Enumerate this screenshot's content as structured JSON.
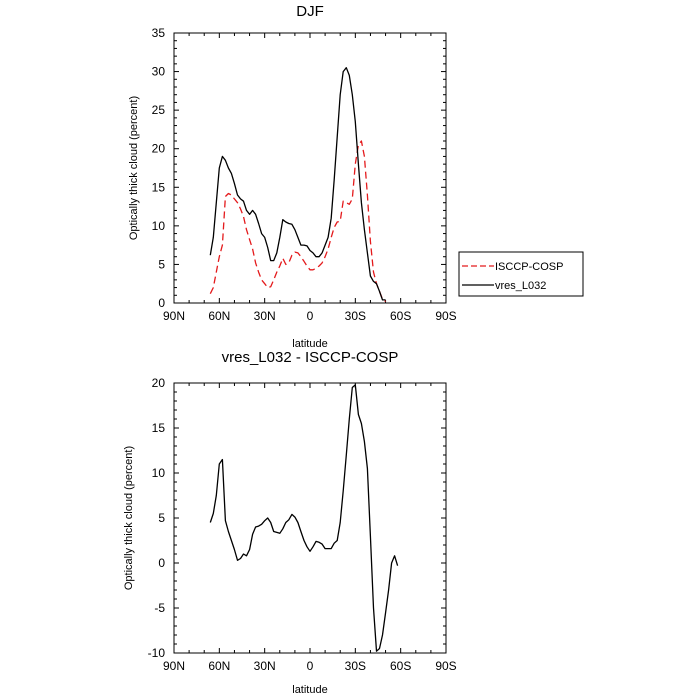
{
  "chart_data": [
    {
      "type": "line",
      "title": "DJF",
      "xlabel": "latitude",
      "ylabel": "Optically thick cloud (percent)",
      "xlim": [
        -90,
        90
      ],
      "ylim": [
        0,
        35
      ],
      "x_ticks": [
        -90,
        -60,
        -30,
        0,
        30,
        60,
        90
      ],
      "x_tick_labels": [
        "90N",
        "60N",
        "30N",
        "0",
        "30S",
        "60S",
        "90S"
      ],
      "y_ticks": [
        0,
        5,
        10,
        15,
        20,
        25,
        30,
        35
      ],
      "y_tick_labels": [
        "0",
        "5",
        "10",
        "15",
        "20",
        "25",
        "30",
        "35"
      ],
      "legend_position": "right",
      "series": [
        {
          "name": "ISCCP-COSP",
          "color": "#e41a1c",
          "dash": "dashed",
          "points": [
            [
              -66,
              1.2
            ],
            [
              -64,
              2.0
            ],
            [
              -62,
              4.0
            ],
            [
              -60,
              6.0
            ],
            [
              -58,
              7.5
            ],
            [
              -56,
              13.8
            ],
            [
              -54,
              14.2
            ],
            [
              -52,
              14.0
            ],
            [
              -50,
              13.5
            ],
            [
              -48,
              13.0
            ],
            [
              -46,
              12.2
            ],
            [
              -44,
              11.2
            ],
            [
              -42,
              9.5
            ],
            [
              -40,
              8.2
            ],
            [
              -38,
              7.0
            ],
            [
              -36,
              5.2
            ],
            [
              -34,
              4.0
            ],
            [
              -32,
              3.0
            ],
            [
              -30,
              2.5
            ],
            [
              -28,
              2.0
            ],
            [
              -26,
              2.1
            ],
            [
              -24,
              3.0
            ],
            [
              -22,
              4.0
            ],
            [
              -20,
              4.8
            ],
            [
              -18,
              5.8
            ],
            [
              -16,
              5.0
            ],
            [
              -14,
              5.2
            ],
            [
              -12,
              6.2
            ],
            [
              -10,
              6.6
            ],
            [
              -8,
              6.5
            ],
            [
              -6,
              6.0
            ],
            [
              -4,
              5.4
            ],
            [
              -2,
              4.8
            ],
            [
              0,
              4.3
            ],
            [
              2,
              4.3
            ],
            [
              4,
              4.5
            ],
            [
              6,
              4.8
            ],
            [
              8,
              5.2
            ],
            [
              10,
              6.0
            ],
            [
              12,
              7.0
            ],
            [
              14,
              8.5
            ],
            [
              16,
              9.8
            ],
            [
              18,
              10.5
            ],
            [
              20,
              10.6
            ],
            [
              22,
              13.2
            ],
            [
              24,
              13.0
            ],
            [
              26,
              12.8
            ],
            [
              28,
              13.5
            ],
            [
              30,
              18.0
            ],
            [
              32,
              20.5
            ],
            [
              34,
              21.0
            ],
            [
              36,
              19.0
            ],
            [
              38,
              14.0
            ],
            [
              40,
              8.0
            ],
            [
              42,
              4.0
            ],
            [
              44,
              2.5
            ],
            [
              46,
              1.5
            ],
            [
              48,
              0.5
            ],
            [
              50,
              0.2
            ]
          ]
        },
        {
          "name": "vres_L032",
          "color": "#000000",
          "dash": "solid",
          "points": [
            [
              -66,
              6.2
            ],
            [
              -64,
              8.5
            ],
            [
              -62,
              13.0
            ],
            [
              -60,
              17.5
            ],
            [
              -58,
              19.0
            ],
            [
              -56,
              18.5
            ],
            [
              -54,
              17.5
            ],
            [
              -52,
              16.8
            ],
            [
              -50,
              15.5
            ],
            [
              -48,
              14.0
            ],
            [
              -46,
              13.5
            ],
            [
              -44,
              13.2
            ],
            [
              -42,
              12.0
            ],
            [
              -40,
              11.5
            ],
            [
              -38,
              12.0
            ],
            [
              -36,
              11.5
            ],
            [
              -34,
              10.3
            ],
            [
              -32,
              9.0
            ],
            [
              -30,
              8.5
            ],
            [
              -28,
              7.2
            ],
            [
              -26,
              5.5
            ],
            [
              -24,
              5.5
            ],
            [
              -22,
              6.5
            ],
            [
              -20,
              8.5
            ],
            [
              -18,
              10.8
            ],
            [
              -16,
              10.5
            ],
            [
              -14,
              10.3
            ],
            [
              -12,
              10.2
            ],
            [
              -10,
              9.5
            ],
            [
              -8,
              8.5
            ],
            [
              -6,
              7.5
            ],
            [
              -4,
              7.5
            ],
            [
              -2,
              7.4
            ],
            [
              0,
              6.8
            ],
            [
              2,
              6.5
            ],
            [
              4,
              6.0
            ],
            [
              6,
              6.0
            ],
            [
              8,
              6.5
            ],
            [
              10,
              7.5
            ],
            [
              12,
              8.5
            ],
            [
              14,
              11.0
            ],
            [
              16,
              16.0
            ],
            [
              18,
              21.5
            ],
            [
              20,
              27.0
            ],
            [
              22,
              30.0
            ],
            [
              24,
              30.5
            ],
            [
              26,
              29.5
            ],
            [
              28,
              27.0
            ],
            [
              30,
              23.5
            ],
            [
              32,
              18.0
            ],
            [
              34,
              13.0
            ],
            [
              36,
              9.5
            ],
            [
              38,
              6.5
            ],
            [
              40,
              3.5
            ],
            [
              42,
              2.8
            ],
            [
              44,
              2.5
            ],
            [
              46,
              1.5
            ],
            [
              48,
              0.4
            ],
            [
              50,
              0.4
            ]
          ]
        }
      ]
    },
    {
      "type": "line",
      "title": "vres_L032 - ISCCP-COSP",
      "xlabel": "latitude",
      "ylabel": "Optically thick cloud (percent)",
      "xlim": [
        -90,
        90
      ],
      "ylim": [
        -10,
        20
      ],
      "x_ticks": [
        -90,
        -60,
        -30,
        0,
        30,
        60,
        90
      ],
      "x_tick_labels": [
        "90N",
        "60N",
        "30N",
        "0",
        "30S",
        "60S",
        "90S"
      ],
      "y_ticks": [
        -10,
        -5,
        0,
        5,
        10,
        15,
        20
      ],
      "y_tick_labels": [
        "-10",
        "-5",
        "0",
        "5",
        "10",
        "15",
        "20"
      ],
      "series": [
        {
          "color": "#000000",
          "dash": "solid",
          "points": [
            [
              -66,
              4.5
            ],
            [
              -64,
              5.5
            ],
            [
              -62,
              7.5
            ],
            [
              -60,
              11.0
            ],
            [
              -58,
              11.5
            ],
            [
              -56,
              4.7
            ],
            [
              -54,
              3.5
            ],
            [
              -52,
              2.5
            ],
            [
              -50,
              1.5
            ],
            [
              -48,
              0.3
            ],
            [
              -46,
              0.5
            ],
            [
              -44,
              1.0
            ],
            [
              -42,
              0.8
            ],
            [
              -40,
              1.5
            ],
            [
              -38,
              3.2
            ],
            [
              -36,
              4.0
            ],
            [
              -34,
              4.1
            ],
            [
              -32,
              4.3
            ],
            [
              -30,
              4.7
            ],
            [
              -28,
              5.0
            ],
            [
              -26,
              4.5
            ],
            [
              -24,
              3.5
            ],
            [
              -22,
              3.4
            ],
            [
              -20,
              3.3
            ],
            [
              -18,
              3.8
            ],
            [
              -16,
              4.5
            ],
            [
              -14,
              4.8
            ],
            [
              -12,
              5.4
            ],
            [
              -10,
              5.1
            ],
            [
              -8,
              4.5
            ],
            [
              -6,
              3.5
            ],
            [
              -4,
              2.5
            ],
            [
              -2,
              1.8
            ],
            [
              0,
              1.3
            ],
            [
              2,
              1.8
            ],
            [
              4,
              2.4
            ],
            [
              6,
              2.3
            ],
            [
              8,
              2.1
            ],
            [
              10,
              1.6
            ],
            [
              12,
              1.6
            ],
            [
              14,
              1.6
            ],
            [
              16,
              2.2
            ],
            [
              18,
              2.5
            ],
            [
              20,
              4.5
            ],
            [
              22,
              8.0
            ],
            [
              24,
              12.0
            ],
            [
              26,
              16.0
            ],
            [
              28,
              19.5
            ],
            [
              30,
              19.8
            ],
            [
              32,
              16.5
            ],
            [
              34,
              15.5
            ],
            [
              36,
              13.5
            ],
            [
              38,
              10.5
            ],
            [
              40,
              3.0
            ],
            [
              42,
              -5.0
            ],
            [
              44,
              -9.8
            ],
            [
              46,
              -9.5
            ],
            [
              48,
              -8.0
            ],
            [
              50,
              -5.5
            ],
            [
              52,
              -3.0
            ],
            [
              54,
              0.0
            ],
            [
              56,
              0.8
            ],
            [
              58,
              -0.3
            ]
          ]
        }
      ]
    }
  ]
}
